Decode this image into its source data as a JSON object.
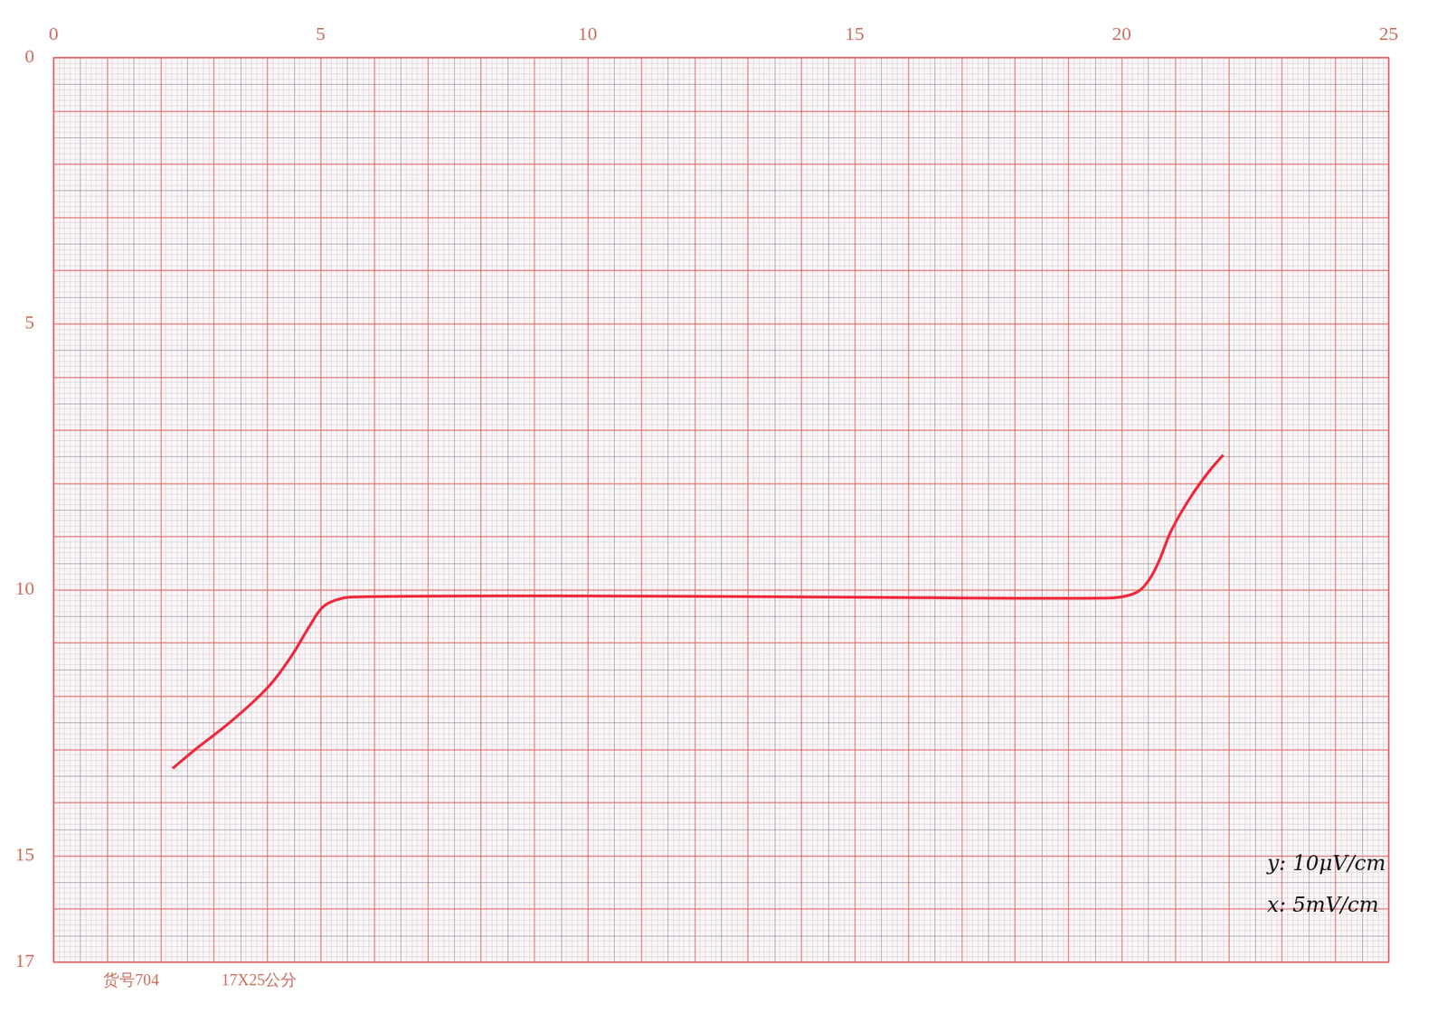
{
  "chart_data": {
    "type": "line",
    "x": [
      2.23,
      2.71,
      3.32,
      4.01,
      4.44,
      4.78,
      5.04,
      5.3,
      5.56,
      9.36,
      14.54,
      19.72,
      20.16,
      20.41,
      20.67,
      20.93,
      21.28,
      21.62,
      21.9
    ],
    "values": [
      13.36,
      12.96,
      12.48,
      11.84,
      11.27,
      10.71,
      10.33,
      10.19,
      10.14,
      10.12,
      10.14,
      10.16,
      10.1,
      9.95,
      9.53,
      8.89,
      8.28,
      7.8,
      7.47
    ],
    "color": "#f0283c",
    "xlim": [
      0,
      25
    ],
    "xticks": [
      0,
      5,
      10,
      15,
      20,
      25
    ],
    "ylim": [
      17,
      0
    ],
    "yticks": [
      0,
      5,
      10,
      15,
      17
    ],
    "grid": true,
    "annotations": [
      "y: 10μV/cm",
      "x: 5mV/cm"
    ],
    "footer": [
      "货号704",
      "17X25公分"
    ]
  }
}
